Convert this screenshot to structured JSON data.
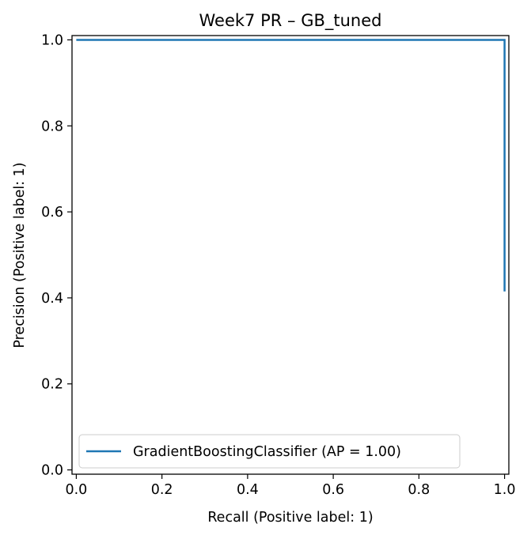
{
  "chart_data": {
    "type": "line",
    "title": "Week7 PR – GB_tuned",
    "xlabel": "Recall (Positive label: 1)",
    "ylabel": "Precision (Positive label: 1)",
    "xlim": [
      -0.01,
      1.01
    ],
    "ylim": [
      -0.01,
      1.01
    ],
    "xticks": [
      0.0,
      0.2,
      0.4,
      0.6,
      0.8,
      1.0
    ],
    "xtick_labels": [
      "0.0",
      "0.2",
      "0.4",
      "0.6",
      "0.8",
      "1.0"
    ],
    "yticks": [
      0.0,
      0.2,
      0.4,
      0.6,
      0.8,
      1.0
    ],
    "ytick_labels": [
      "0.0",
      "0.2",
      "0.4",
      "0.6",
      "0.8",
      "1.0"
    ],
    "grid": false,
    "legend_position": "lower-left",
    "series": [
      {
        "name": "GradientBoostingClassifier (AP = 1.00)",
        "color": "#1f77b4",
        "x": [
          0.0,
          1.0,
          1.0
        ],
        "y": [
          1.0,
          1.0,
          0.415
        ]
      }
    ]
  }
}
